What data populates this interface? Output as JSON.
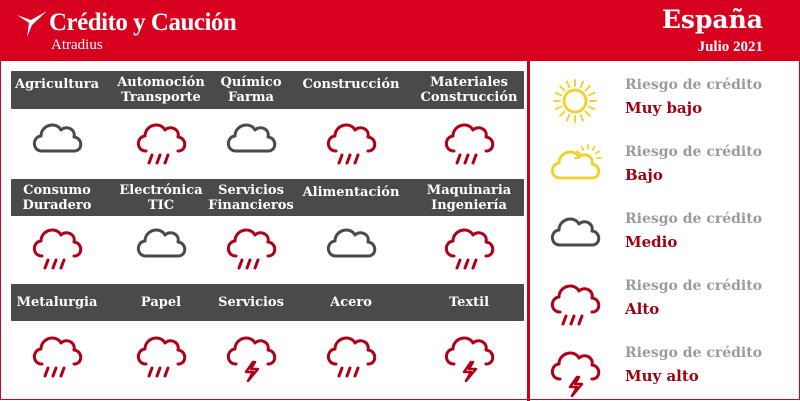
{
  "header": {
    "brand": "Crédito y Caución",
    "brand_sub": "Atradius",
    "country": "España",
    "date": "Julio 2021",
    "accent": "#d8001f"
  },
  "colors": {
    "medio": "#4a4a4a",
    "alto": "#b00018",
    "bajo": "#f0d232",
    "bar": "#4a4a4a"
  },
  "sectors": [
    {
      "label": "Agricultura",
      "risk": "medio"
    },
    {
      "label": "Automoción\nTransporte",
      "risk": "alto"
    },
    {
      "label": "Químico\nFarma",
      "risk": "medio"
    },
    {
      "label": "Construcción",
      "risk": "alto"
    },
    {
      "label": "Materiales\nConstrucción",
      "risk": "alto"
    },
    {
      "label": "Consumo\nDuradero",
      "risk": "alto"
    },
    {
      "label": "Electrónica\nTIC",
      "risk": "medio"
    },
    {
      "label": "Servicios\nFinancieros",
      "risk": "alto"
    },
    {
      "label": "Alimentación",
      "risk": "medio"
    },
    {
      "label": "Maquinaria\nIngeniería",
      "risk": "alto"
    },
    {
      "label": "Metalurgia",
      "risk": "alto"
    },
    {
      "label": "Papel",
      "risk": "alto"
    },
    {
      "label": "Servicios",
      "risk": "muy_alto"
    },
    {
      "label": "Acero",
      "risk": "alto"
    },
    {
      "label": "Textil",
      "risk": "muy_alto"
    }
  ],
  "legend": [
    {
      "title": "Riesgo de crédito",
      "value": "Muy bajo",
      "risk": "muy_bajo",
      "icon": "sun-icon"
    },
    {
      "title": "Riesgo de crédito",
      "value": "Bajo",
      "risk": "bajo",
      "icon": "sun-cloud-icon"
    },
    {
      "title": "Riesgo de crédito",
      "value": "Medio",
      "risk": "medio",
      "icon": "cloud-icon"
    },
    {
      "title": "Riesgo de crédito",
      "value": "Alto",
      "risk": "alto",
      "icon": "rain-cloud-icon"
    },
    {
      "title": "Riesgo de crédito",
      "value": "Muy alto",
      "risk": "muy_alto",
      "icon": "storm-cloud-icon"
    }
  ]
}
